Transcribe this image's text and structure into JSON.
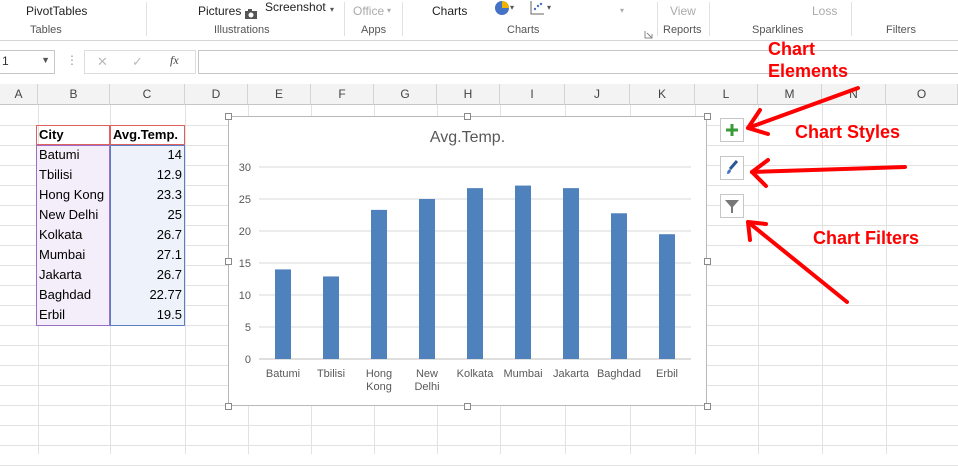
{
  "ribbon": {
    "pivottables_label": "PivotTables",
    "tables_group": "Tables",
    "pictures_label": "Pictures",
    "screenshot_label": "Screenshot",
    "illustrations_group": "Illustrations",
    "office_label": "Office",
    "apps_group": "Apps",
    "charts_label": "Charts",
    "charts_group": "Charts",
    "view_label": "View",
    "reports_group": "Reports",
    "loss_label": "Loss",
    "sparklines_group": "Sparklines",
    "filters_group": "Filters"
  },
  "formula_bar": {
    "name_box": "1",
    "fx": "fx",
    "cancel": "✕",
    "enter": "✓",
    "value": ""
  },
  "columns": [
    "A",
    "B",
    "C",
    "D",
    "E",
    "F",
    "G",
    "H",
    "I",
    "J",
    "K",
    "L",
    "M",
    "N",
    "O"
  ],
  "table": {
    "headers": [
      "City",
      "Avg.Temp."
    ],
    "rows": [
      [
        "Batumi",
        "14"
      ],
      [
        "Tbilisi",
        "12.9"
      ],
      [
        "Hong Kong",
        "23.3"
      ],
      [
        "New Delhi",
        "25"
      ],
      [
        "Kolkata",
        "26.7"
      ],
      [
        "Mumbai",
        "27.1"
      ],
      [
        "Jakarta",
        "26.7"
      ],
      [
        "Baghdad",
        "22.77"
      ],
      [
        "Erbil",
        "19.5"
      ]
    ]
  },
  "chart_data": {
    "type": "bar",
    "title": "Avg.Temp.",
    "categories": [
      "Batumi",
      "Tbilisi",
      "Hong Kong",
      "New Delhi",
      "Kolkata",
      "Mumbai",
      "Jakarta",
      "Baghdad",
      "Erbil"
    ],
    "values": [
      14,
      12.9,
      23.3,
      25,
      26.7,
      27.1,
      26.7,
      22.77,
      19.5
    ],
    "ylim": [
      0,
      30
    ],
    "yticks": [
      0,
      5,
      10,
      15,
      20,
      25,
      30
    ],
    "grid": true,
    "legend": "none",
    "bar_color": "#4f81bd"
  },
  "annotations": {
    "chart_elements": "Chart Elements",
    "chart_styles": "Chart Styles",
    "chart_filters": "Chart Filters",
    "color": "#ff0000"
  },
  "side_buttons": {
    "elements_icon": "plus-icon",
    "styles_icon": "paintbrush-icon",
    "filters_icon": "funnel-icon"
  }
}
